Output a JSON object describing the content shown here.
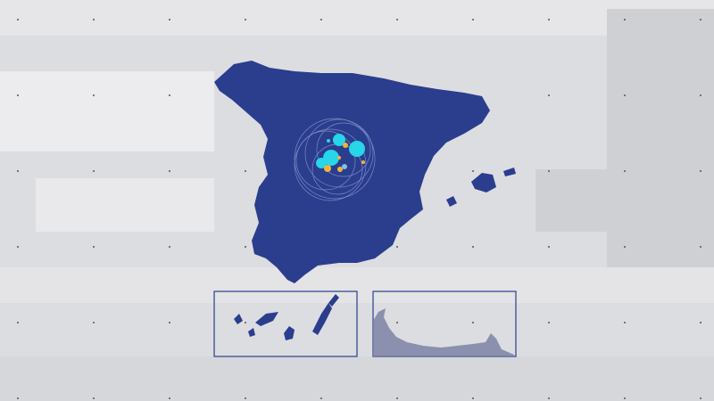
{
  "colors": {
    "background": "#dcdde0",
    "land": "#2b3d8d",
    "bubble_primary": "#27d6e8",
    "bubble_secondary": "#f0b43a",
    "inset_border": "#2b3d8d"
  },
  "map": {
    "region": "Spain",
    "insets": [
      "canary-islands",
      "ceuta-melilla-coast"
    ]
  }
}
